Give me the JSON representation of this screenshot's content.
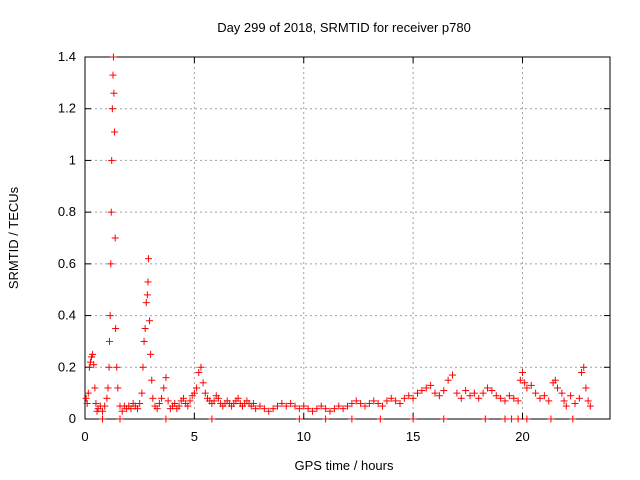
{
  "chart_data": {
    "type": "scatter",
    "title": "Day 299 of 2018, SRMTID for receiver p780",
    "xlabel": "GPS time / hours",
    "ylabel": "SRMTID / TECUs",
    "xlim": [
      0,
      24
    ],
    "ylim": [
      0,
      1.4
    ],
    "xticks": [
      "0",
      "5",
      "10",
      "15",
      "20"
    ],
    "yticks": [
      "0",
      "0.2",
      "0.4",
      "0.6",
      "0.8",
      "1",
      "1.2",
      "1.4"
    ],
    "grid": true,
    "marker": "plus",
    "color": "#ff0000",
    "series": [
      {
        "points": [
          [
            0.05,
            0.08
          ],
          [
            0.1,
            0.06
          ],
          [
            0.15,
            0.1
          ],
          [
            0.2,
            0.2
          ],
          [
            0.25,
            0.22
          ],
          [
            0.3,
            0.24
          ],
          [
            0.35,
            0.25
          ],
          [
            0.4,
            0.21
          ],
          [
            0.45,
            0.12
          ],
          [
            0.5,
            0.06
          ],
          [
            0.55,
            0.03
          ],
          [
            0.6,
            0.04
          ],
          [
            0.7,
            0.05
          ],
          [
            0.8,
            0.03
          ],
          [
            0.9,
            0.05
          ],
          [
            1.0,
            0.08
          ],
          [
            1.05,
            0.12
          ],
          [
            1.1,
            0.2
          ],
          [
            1.12,
            0.3
          ],
          [
            1.15,
            0.4
          ],
          [
            1.18,
            0.6
          ],
          [
            1.2,
            0.8
          ],
          [
            1.22,
            1.0
          ],
          [
            1.25,
            1.2
          ],
          [
            1.28,
            1.33
          ],
          [
            1.3,
            1.4
          ],
          [
            1.32,
            1.26
          ],
          [
            1.35,
            1.11
          ],
          [
            1.38,
            0.7
          ],
          [
            1.4,
            0.35
          ],
          [
            1.45,
            0.2
          ],
          [
            1.5,
            0.12
          ],
          [
            1.6,
            0.05
          ],
          [
            1.7,
            0.03
          ],
          [
            1.8,
            0.05
          ],
          [
            1.9,
            0.04
          ],
          [
            2.0,
            0.05
          ],
          [
            2.1,
            0.04
          ],
          [
            2.2,
            0.06
          ],
          [
            2.3,
            0.05
          ],
          [
            2.4,
            0.04
          ],
          [
            2.5,
            0.06
          ],
          [
            2.6,
            0.1
          ],
          [
            2.65,
            0.2
          ],
          [
            2.7,
            0.3
          ],
          [
            2.75,
            0.35
          ],
          [
            2.8,
            0.45
          ],
          [
            2.85,
            0.48
          ],
          [
            2.88,
            0.53
          ],
          [
            2.9,
            0.62
          ],
          [
            2.95,
            0.38
          ],
          [
            3.0,
            0.25
          ],
          [
            3.05,
            0.15
          ],
          [
            3.1,
            0.08
          ],
          [
            3.2,
            0.05
          ],
          [
            3.3,
            0.04
          ],
          [
            3.4,
            0.06
          ],
          [
            3.5,
            0.08
          ],
          [
            3.6,
            0.12
          ],
          [
            3.7,
            0.16
          ],
          [
            3.8,
            0.07
          ],
          [
            3.9,
            0.04
          ],
          [
            4.0,
            0.05
          ],
          [
            4.1,
            0.06
          ],
          [
            4.2,
            0.04
          ],
          [
            4.3,
            0.05
          ],
          [
            4.4,
            0.07
          ],
          [
            4.5,
            0.08
          ],
          [
            4.6,
            0.06
          ],
          [
            4.7,
            0.05
          ],
          [
            4.8,
            0.07
          ],
          [
            4.9,
            0.09
          ],
          [
            5.0,
            0.1
          ],
          [
            5.1,
            0.12
          ],
          [
            5.2,
            0.18
          ],
          [
            5.3,
            0.2
          ],
          [
            5.4,
            0.14
          ],
          [
            5.5,
            0.1
          ],
          [
            5.6,
            0.08
          ],
          [
            5.7,
            0.07
          ],
          [
            5.8,
            0.06
          ],
          [
            5.9,
            0.07
          ],
          [
            6.0,
            0.09
          ],
          [
            6.1,
            0.08
          ],
          [
            6.2,
            0.06
          ],
          [
            6.3,
            0.05
          ],
          [
            6.4,
            0.06
          ],
          [
            6.5,
            0.07
          ],
          [
            6.6,
            0.06
          ],
          [
            6.7,
            0.05
          ],
          [
            6.8,
            0.06
          ],
          [
            6.9,
            0.07
          ],
          [
            7.0,
            0.08
          ],
          [
            7.1,
            0.06
          ],
          [
            7.2,
            0.05
          ],
          [
            7.3,
            0.06
          ],
          [
            7.4,
            0.07
          ],
          [
            7.5,
            0.06
          ],
          [
            7.6,
            0.05
          ],
          [
            7.7,
            0.06
          ],
          [
            7.8,
            0.04
          ],
          [
            8.0,
            0.05
          ],
          [
            8.2,
            0.04
          ],
          [
            8.4,
            0.03
          ],
          [
            8.6,
            0.04
          ],
          [
            8.8,
            0.05
          ],
          [
            9.0,
            0.06
          ],
          [
            9.2,
            0.05
          ],
          [
            9.4,
            0.06
          ],
          [
            9.6,
            0.05
          ],
          [
            9.8,
            0.04
          ],
          [
            10.0,
            0.05
          ],
          [
            10.2,
            0.04
          ],
          [
            10.4,
            0.03
          ],
          [
            10.6,
            0.04
          ],
          [
            10.8,
            0.05
          ],
          [
            11.0,
            0.04
          ],
          [
            11.2,
            0.03
          ],
          [
            11.4,
            0.04
          ],
          [
            11.6,
            0.05
          ],
          [
            11.8,
            0.04
          ],
          [
            12.0,
            0.05
          ],
          [
            12.2,
            0.06
          ],
          [
            12.4,
            0.07
          ],
          [
            12.6,
            0.06
          ],
          [
            12.8,
            0.05
          ],
          [
            13.0,
            0.06
          ],
          [
            13.2,
            0.07
          ],
          [
            13.4,
            0.06
          ],
          [
            13.6,
            0.05
          ],
          [
            13.8,
            0.07
          ],
          [
            14.0,
            0.08
          ],
          [
            14.2,
            0.07
          ],
          [
            14.4,
            0.06
          ],
          [
            14.6,
            0.08
          ],
          [
            14.8,
            0.09
          ],
          [
            15.0,
            0.08
          ],
          [
            15.2,
            0.1
          ],
          [
            15.4,
            0.11
          ],
          [
            15.6,
            0.12
          ],
          [
            15.8,
            0.13
          ],
          [
            16.0,
            0.1
          ],
          [
            16.2,
            0.09
          ],
          [
            16.4,
            0.11
          ],
          [
            16.6,
            0.15
          ],
          [
            16.8,
            0.17
          ],
          [
            17.0,
            0.1
          ],
          [
            17.2,
            0.08
          ],
          [
            17.4,
            0.11
          ],
          [
            17.6,
            0.09
          ],
          [
            17.8,
            0.1
          ],
          [
            18.0,
            0.08
          ],
          [
            18.2,
            0.1
          ],
          [
            18.4,
            0.12
          ],
          [
            18.6,
            0.11
          ],
          [
            18.8,
            0.09
          ],
          [
            19.0,
            0.08
          ],
          [
            19.2,
            0.07
          ],
          [
            19.4,
            0.09
          ],
          [
            19.6,
            0.08
          ],
          [
            19.8,
            0.07
          ],
          [
            19.9,
            0.15
          ],
          [
            20.0,
            0.18
          ],
          [
            20.1,
            0.14
          ],
          [
            20.2,
            0.12
          ],
          [
            20.4,
            0.13
          ],
          [
            20.6,
            0.1
          ],
          [
            20.8,
            0.08
          ],
          [
            21.0,
            0.09
          ],
          [
            21.2,
            0.07
          ],
          [
            21.4,
            0.14
          ],
          [
            21.5,
            0.15
          ],
          [
            21.6,
            0.12
          ],
          [
            21.8,
            0.1
          ],
          [
            21.9,
            0.07
          ],
          [
            22.0,
            0.05
          ],
          [
            22.2,
            0.09
          ],
          [
            22.4,
            0.06
          ],
          [
            22.6,
            0.08
          ],
          [
            22.7,
            0.18
          ],
          [
            22.8,
            0.2
          ],
          [
            22.9,
            0.12
          ],
          [
            23.0,
            0.07
          ],
          [
            23.1,
            0.05
          ],
          [
            0.8,
            0.0
          ],
          [
            1.6,
            0.0
          ],
          [
            3.7,
            0.0
          ],
          [
            5.8,
            0.0
          ],
          [
            9.8,
            0.0
          ],
          [
            11.0,
            0.0
          ],
          [
            12.2,
            0.0
          ],
          [
            13.5,
            0.0
          ],
          [
            15.0,
            0.0
          ],
          [
            16.4,
            0.0
          ],
          [
            18.3,
            0.0
          ],
          [
            19.2,
            0.0
          ],
          [
            19.5,
            0.0
          ],
          [
            19.8,
            0.0
          ],
          [
            20.2,
            0.0
          ],
          [
            21.3,
            0.0
          ],
          [
            22.3,
            0.0
          ]
        ]
      }
    ]
  }
}
